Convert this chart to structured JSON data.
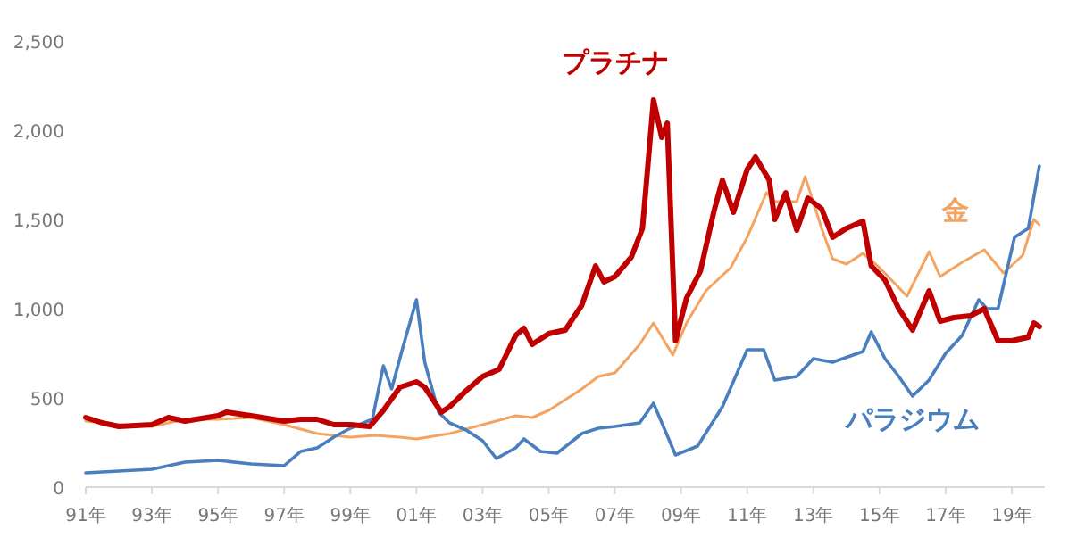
{
  "chart_data": {
    "type": "line",
    "xlim": [
      "1991",
      "2020"
    ],
    "ylim": [
      0,
      2500
    ],
    "xticks": [
      {
        "value": "1991",
        "label": "91年"
      },
      {
        "value": "1993",
        "label": "93年"
      },
      {
        "value": "1995",
        "label": "95年"
      },
      {
        "value": "1997",
        "label": "97年"
      },
      {
        "value": "1999",
        "label": "99年"
      },
      {
        "value": "2001",
        "label": "01年"
      },
      {
        "value": "2003",
        "label": "03年"
      },
      {
        "value": "2005",
        "label": "05年"
      },
      {
        "value": "2007",
        "label": "07年"
      },
      {
        "value": "2009",
        "label": "09年"
      },
      {
        "value": "2011",
        "label": "11年"
      },
      {
        "value": "2013",
        "label": "13年"
      },
      {
        "value": "2015",
        "label": "15年"
      },
      {
        "value": "2017",
        "label": "17年"
      },
      {
        "value": "2019",
        "label": "19年"
      }
    ],
    "yticks": [
      0,
      {
        "value": 500,
        "label": "500"
      },
      {
        "value": 1000,
        "label": "1,000"
      },
      {
        "value": 1500,
        "label": "1,500"
      },
      {
        "value": 2000,
        "label": "2,000"
      },
      {
        "value": 2500,
        "label": "2,500"
      }
    ],
    "grid": false,
    "series": [
      {
        "name": "金",
        "color": "#f4a460",
        "x": [
          "1991-01",
          "1992-01",
          "1993-01",
          "1994-01",
          "1995-01",
          "1996-01",
          "1997-01",
          "1998-01",
          "1999-01",
          "1999-10",
          "2000-07",
          "2001-01",
          "2002-01",
          "2003-01",
          "2004-01",
          "2004-07",
          "2005-01",
          "2006-01",
          "2006-07",
          "2007-01",
          "2007-10",
          "2008-03",
          "2008-10",
          "2009-03",
          "2009-10",
          "2010-07",
          "2011-01",
          "2011-08",
          "2011-11",
          "2012-07",
          "2012-10",
          "2013-04",
          "2013-08",
          "2014-01",
          "2014-07",
          "2015-01",
          "2015-11",
          "2016-07",
          "2016-11",
          "2017-07",
          "2018-03",
          "2018-10",
          "2019-05",
          "2019-09",
          "2019-11"
        ],
        "values": [
          370,
          350,
          340,
          380,
          380,
          390,
          350,
          300,
          280,
          290,
          280,
          270,
          300,
          350,
          400,
          390,
          430,
          550,
          620,
          640,
          800,
          920,
          740,
          920,
          1100,
          1230,
          1400,
          1650,
          1600,
          1600,
          1740,
          1450,
          1280,
          1250,
          1310,
          1230,
          1070,
          1320,
          1180,
          1260,
          1330,
          1200,
          1300,
          1500,
          1470
        ]
      },
      {
        "name": "パラジウム",
        "color": "#4a7fbf",
        "x": [
          "1991-01",
          "1992-01",
          "1993-01",
          "1994-01",
          "1995-01",
          "1996-01",
          "1997-01",
          "1997-07",
          "1998-01",
          "1998-07",
          "1999-01",
          "1999-09",
          "2000-01",
          "2000-04",
          "2000-08",
          "2001-01",
          "2001-04",
          "2001-09",
          "2002-01",
          "2002-07",
          "2003-01",
          "2003-06",
          "2004-01",
          "2004-04",
          "2004-10",
          "2005-04",
          "2006-01",
          "2006-07",
          "2007-01",
          "2007-10",
          "2008-03",
          "2008-11",
          "2009-07",
          "2010-04",
          "2011-01",
          "2011-07",
          "2011-11",
          "2012-07",
          "2013-01",
          "2013-08",
          "2014-07",
          "2014-10",
          "2015-03",
          "2015-08",
          "2016-01",
          "2016-07",
          "2017-01",
          "2017-07",
          "2018-01",
          "2018-04",
          "2018-08",
          "2018-11",
          "2019-02",
          "2019-07",
          "2019-11"
        ],
        "values": [
          80,
          90,
          100,
          140,
          150,
          130,
          120,
          200,
          220,
          280,
          330,
          380,
          680,
          550,
          780,
          1050,
          700,
          420,
          360,
          320,
          260,
          160,
          220,
          270,
          200,
          190,
          300,
          330,
          340,
          360,
          470,
          180,
          230,
          450,
          770,
          770,
          600,
          620,
          720,
          700,
          760,
          870,
          720,
          620,
          510,
          600,
          750,
          850,
          1050,
          1000,
          1000,
          1200,
          1400,
          1450,
          1800
        ]
      },
      {
        "name": "プラチナ",
        "color": "#c00000",
        "x": [
          "1991-01",
          "1991-07",
          "1992-01",
          "1993-01",
          "1993-07",
          "1994-01",
          "1995-01",
          "1995-04",
          "1996-01",
          "1997-01",
          "1997-07",
          "1998-01",
          "1998-07",
          "1999-01",
          "1999-08",
          "2000-01",
          "2000-07",
          "2001-01",
          "2001-04",
          "2001-10",
          "2002-01",
          "2002-07",
          "2003-01",
          "2003-07",
          "2004-01",
          "2004-04",
          "2004-07",
          "2005-01",
          "2005-07",
          "2006-01",
          "2006-06",
          "2006-09",
          "2007-01",
          "2007-07",
          "2007-11",
          "2008-03",
          "2008-06",
          "2008-08",
          "2008-11",
          "2009-03",
          "2009-08",
          "2010-01",
          "2010-04",
          "2010-08",
          "2011-01",
          "2011-04",
          "2011-09",
          "2011-11",
          "2012-03",
          "2012-07",
          "2012-11",
          "2013-04",
          "2013-08",
          "2014-01",
          "2014-07",
          "2014-10",
          "2015-03",
          "2015-08",
          "2016-01",
          "2016-07",
          "2016-11",
          "2017-04",
          "2017-10",
          "2018-03",
          "2018-08",
          "2019-01",
          "2019-07",
          "2019-09",
          "2019-11"
        ],
        "values": [
          390,
          360,
          340,
          350,
          390,
          370,
          400,
          420,
          400,
          370,
          380,
          380,
          350,
          350,
          340,
          430,
          560,
          590,
          560,
          420,
          450,
          540,
          620,
          660,
          850,
          890,
          800,
          860,
          880,
          1020,
          1240,
          1150,
          1180,
          1290,
          1450,
          2170,
          1960,
          2040,
          820,
          1060,
          1210,
          1550,
          1720,
          1540,
          1780,
          1850,
          1720,
          1500,
          1650,
          1440,
          1620,
          1560,
          1400,
          1450,
          1490,
          1240,
          1160,
          1000,
          880,
          1100,
          930,
          950,
          960,
          1000,
          820,
          820,
          840,
          920,
          900
        ]
      }
    ]
  }
}
